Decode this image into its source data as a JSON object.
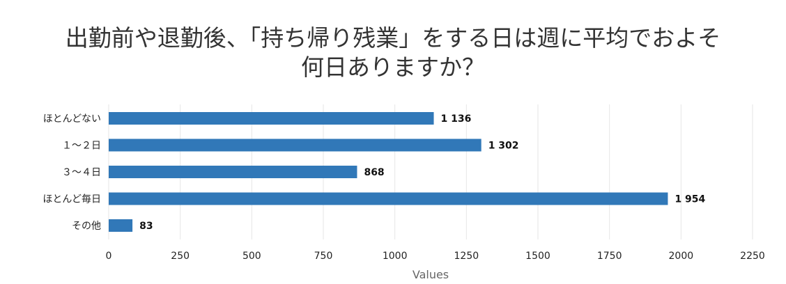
{
  "chart_data": {
    "type": "bar",
    "orientation": "horizontal",
    "title_lines": [
      "出勤前や退勤後、「持ち帰り残業」をする日は週に平均でおよそ",
      "何日ありますか？"
    ],
    "categories": [
      "ほとんどない",
      "１～２日",
      "３～４日",
      "ほとんど毎日",
      "その他"
    ],
    "values": [
      1136,
      1302,
      868,
      1954,
      83
    ],
    "data_labels": [
      "1 136",
      "1 302",
      "868",
      "1 954",
      "83"
    ],
    "xlabel": "Values",
    "ylabel": "",
    "xlim": [
      0,
      2250
    ],
    "x_ticks": [
      0,
      250,
      500,
      750,
      1000,
      1250,
      1500,
      1750,
      2000,
      2250
    ],
    "grid": true,
    "legend": "none",
    "bar_color": "#3178b8",
    "grid_color": "#e6e6e6"
  }
}
